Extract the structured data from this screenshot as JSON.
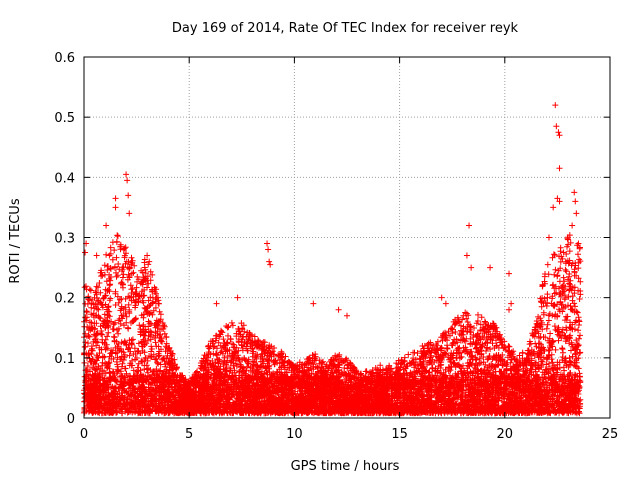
{
  "chart_data": {
    "type": "scatter",
    "title": "Day 169 of 2014, Rate Of TEC Index for receiver reyk",
    "xlabel": "GPS time / hours",
    "ylabel": "ROTI / TECUs",
    "xlim": [
      0,
      25
    ],
    "ylim": [
      0,
      0.6
    ],
    "xticks": [
      "0",
      "5",
      "10",
      "15",
      "20",
      "25"
    ],
    "yticks": [
      "0",
      "0.1",
      "0.2",
      "0.3",
      "0.4",
      "0.5",
      "0.6"
    ],
    "grid": true,
    "marker": "+",
    "color": "#ff0000",
    "envelope": {
      "description": "Upper envelope of dense point cloud (hour, ROTI)",
      "hours": [
        0,
        0.5,
        1,
        1.5,
        2,
        2.5,
        3,
        3.5,
        4,
        4.5,
        5,
        5.5,
        6,
        6.5,
        7,
        7.5,
        8,
        8.5,
        9,
        9.5,
        10,
        10.5,
        11,
        11.5,
        12,
        12.5,
        13,
        13.5,
        14,
        14.5,
        15,
        15.5,
        16,
        16.5,
        17,
        17.5,
        18,
        18.5,
        19,
        19.5,
        20,
        20.5,
        21,
        21.5,
        22,
        22.5,
        23,
        23.5
      ],
      "upper": [
        0.22,
        0.2,
        0.26,
        0.3,
        0.28,
        0.25,
        0.26,
        0.2,
        0.12,
        0.07,
        0.05,
        0.08,
        0.12,
        0.14,
        0.15,
        0.15,
        0.13,
        0.12,
        0.11,
        0.1,
        0.08,
        0.09,
        0.1,
        0.08,
        0.1,
        0.09,
        0.07,
        0.07,
        0.08,
        0.08,
        0.09,
        0.1,
        0.11,
        0.12,
        0.13,
        0.15,
        0.17,
        0.17,
        0.16,
        0.15,
        0.12,
        0.1,
        0.11,
        0.15,
        0.26,
        0.27,
        0.3,
        0.28
      ]
    },
    "outliers": [
      [
        2.0,
        0.405
      ],
      [
        2.05,
        0.395
      ],
      [
        1.5,
        0.365
      ],
      [
        1.05,
        0.32
      ],
      [
        1.5,
        0.35
      ],
      [
        2.1,
        0.37
      ],
      [
        2.15,
        0.34
      ],
      [
        0.1,
        0.29
      ],
      [
        0.05,
        0.275
      ],
      [
        0.6,
        0.27
      ],
      [
        3.0,
        0.27
      ],
      [
        3.1,
        0.26
      ],
      [
        8.7,
        0.29
      ],
      [
        8.75,
        0.28
      ],
      [
        8.8,
        0.26
      ],
      [
        8.85,
        0.255
      ],
      [
        6.3,
        0.19
      ],
      [
        7.3,
        0.2
      ],
      [
        10.9,
        0.19
      ],
      [
        12.1,
        0.18
      ],
      [
        12.5,
        0.17
      ],
      [
        18.3,
        0.32
      ],
      [
        18.2,
        0.27
      ],
      [
        18.4,
        0.25
      ],
      [
        19.3,
        0.25
      ],
      [
        17.0,
        0.2
      ],
      [
        17.2,
        0.19
      ],
      [
        20.2,
        0.24
      ],
      [
        20.3,
        0.19
      ],
      [
        20.2,
        0.18
      ],
      [
        22.4,
        0.52
      ],
      [
        22.45,
        0.485
      ],
      [
        22.55,
        0.475
      ],
      [
        22.6,
        0.47
      ],
      [
        22.6,
        0.415
      ],
      [
        22.5,
        0.365
      ],
      [
        22.6,
        0.36
      ],
      [
        23.3,
        0.375
      ],
      [
        23.35,
        0.36
      ],
      [
        23.4,
        0.34
      ],
      [
        23.2,
        0.32
      ],
      [
        22.3,
        0.35
      ],
      [
        22.1,
        0.3
      ],
      [
        23.0,
        0.23
      ],
      [
        23.5,
        0.29
      ]
    ]
  }
}
